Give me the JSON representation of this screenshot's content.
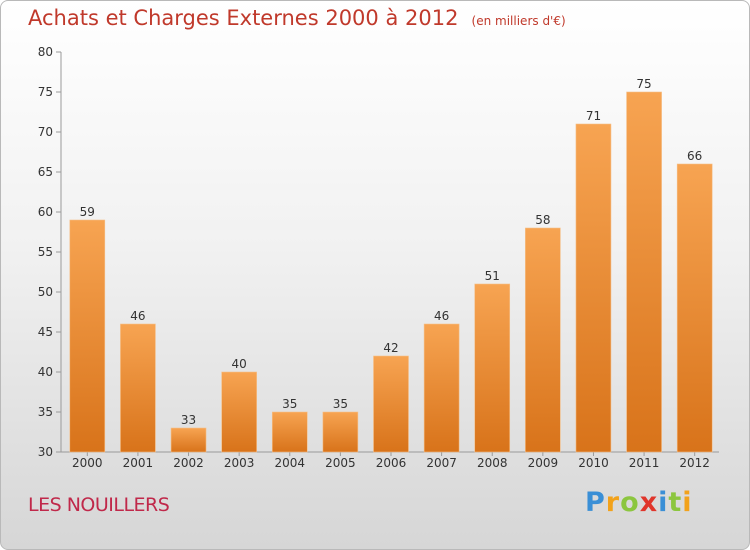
{
  "chart_data": {
    "type": "bar",
    "title": "Achats et Charges Externes 2000 à 2012",
    "subtitle": "(en milliers d'€)",
    "categories": [
      "2000",
      "2001",
      "2002",
      "2003",
      "2004",
      "2005",
      "2006",
      "2007",
      "2008",
      "2009",
      "2010",
      "2011",
      "2012"
    ],
    "values": [
      59,
      46,
      33,
      40,
      35,
      35,
      42,
      46,
      51,
      58,
      71,
      75,
      66
    ],
    "ylim": [
      30,
      80
    ],
    "yticks": [
      30,
      35,
      40,
      45,
      50,
      55,
      60,
      65,
      70,
      75,
      80
    ],
    "xlabel": "",
    "ylabel": "",
    "grid": false,
    "bar_color_top": "#f7a452",
    "bar_color_bottom": "#d8731a"
  },
  "location": "LES NOUILLERS",
  "brand": {
    "letters": [
      "P",
      "r",
      "o",
      "x",
      "i",
      "t",
      "i"
    ],
    "colors": [
      "#3a8fd6",
      "#f2a21b",
      "#8cc63f",
      "#e0352b",
      "#3a8fd6",
      "#8cc63f",
      "#f2a21b"
    ]
  },
  "colors": {
    "title": "#c0392b",
    "location": "#c0284a"
  }
}
